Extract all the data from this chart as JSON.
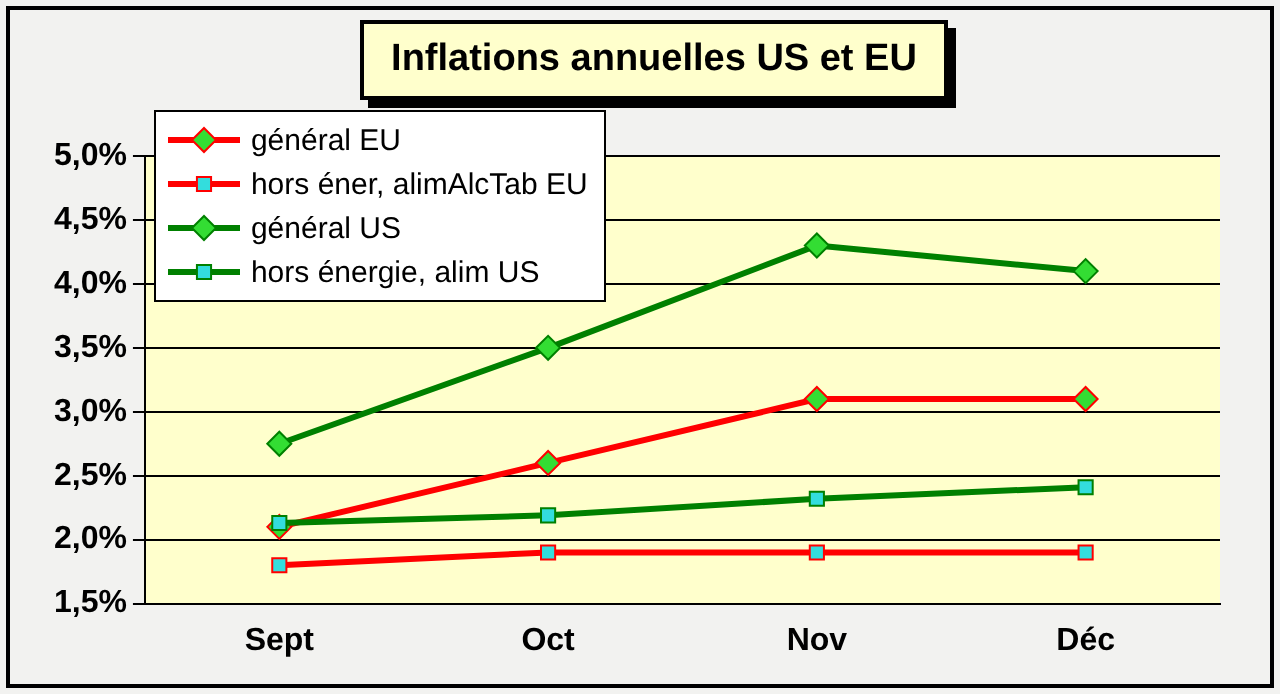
{
  "chart_data": {
    "type": "line",
    "title": "Inflations annuelles US et EU",
    "categories": [
      "Sept",
      "Oct",
      "Nov",
      "Déc"
    ],
    "series": [
      {
        "name": "général EU",
        "color": "#ff0000",
        "values": [
          2.1,
          2.6,
          3.1,
          3.1
        ],
        "marker": "diamond"
      },
      {
        "name": "hors éner, alimAlcTab EU",
        "color": "#ff0000",
        "values": [
          1.8,
          1.9,
          1.9,
          1.9
        ],
        "marker": "square"
      },
      {
        "name": "général US",
        "color": "#008000",
        "values": [
          2.75,
          3.5,
          4.3,
          4.1
        ],
        "marker": "diamond"
      },
      {
        "name": "hors énergie, alim US",
        "color": "#008000",
        "values": [
          2.13,
          2.19,
          2.32,
          2.41
        ],
        "marker": "square"
      }
    ],
    "ylim": [
      1.5,
      5
    ],
    "yticks": [
      {
        "value": 1.5,
        "label": "1,5%"
      },
      {
        "value": 2,
        "label": "2,0%"
      },
      {
        "value": 2.5,
        "label": "2,5%"
      },
      {
        "value": 3,
        "label": "3,0%"
      },
      {
        "value": 3.5,
        "label": "3,5%"
      },
      {
        "value": 4,
        "label": "4,0%"
      },
      {
        "value": 4.5,
        "label": "4,5%"
      },
      {
        "value": 5,
        "label": "5,0%"
      }
    ],
    "grid": "y",
    "legend": "top left"
  }
}
